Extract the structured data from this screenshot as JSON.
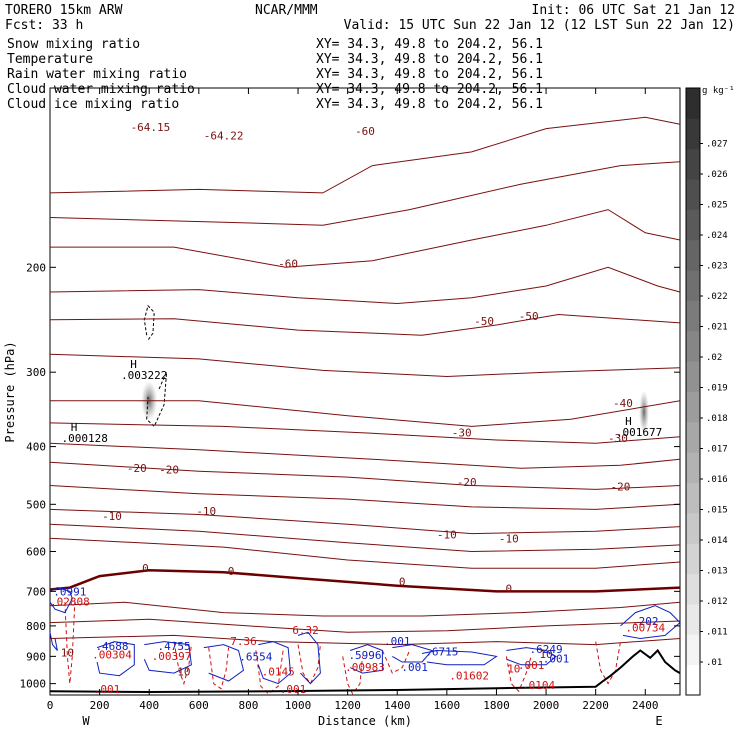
{
  "header": {
    "model": "TORERO  15km ARW",
    "org": "NCAR/MMM",
    "init": "Init: 06 UTC Sat 21 Jan 12",
    "fcst": "Fcst:   33 h",
    "valid": "Valid: 15 UTC Sun 22 Jan 12 (12 LST Sun 22 Jan 12)"
  },
  "legend": [
    {
      "label": "Snow mixing ratio",
      "xy": "XY=  34.3, 49.8 to 204.2, 56.1",
      "color": "#000000"
    },
    {
      "label": "Temperature",
      "xy": "XY=  34.3, 49.8 to 204.2, 56.1",
      "color": "#cc0000"
    },
    {
      "label": "Rain water mixing ratio",
      "xy": "XY=  34.3, 49.8 to 204.2, 56.1",
      "color": "#cc0000"
    },
    {
      "label": "Cloud water mixing ratio",
      "xy": "XY=  34.3, 49.8 to 204.2, 56.1",
      "color": "#0000cc"
    },
    {
      "label": "Cloud ice mixing ratio",
      "xy": "XY=  34.3, 49.8 to 204.2, 56.1",
      "color": "#000000"
    }
  ],
  "colors": {
    "temperature": "#7a1010",
    "zero_isotherm": "#6b0000",
    "rain": "#d01010",
    "cloud_water": "#1020c0",
    "terrain": "#000000",
    "cloud_ice": "#000000"
  },
  "chart_data": {
    "type": "contour",
    "xlabel": "Distance (km)",
    "ylabel": "Pressure (hPa)",
    "x_end_labels": {
      "left": "W",
      "right": "E"
    },
    "xlim": [
      0,
      2540
    ],
    "ylim_pressure": [
      1045,
      100
    ],
    "x_ticks": [
      0,
      200,
      400,
      600,
      800,
      1000,
      1200,
      1400,
      1600,
      1800,
      2000,
      2200,
      2400
    ],
    "y_ticks": [
      200,
      300,
      400,
      500,
      600,
      700,
      800,
      900,
      1000
    ],
    "colorbar": {
      "unit": "g kg⁻¹",
      "ticks": [
        ".01",
        ".011",
        ".012",
        ".013",
        ".014",
        ".015",
        ".016",
        ".017",
        ".018",
        ".019",
        ".02",
        ".021",
        ".022",
        ".023",
        ".024",
        ".025",
        ".026",
        ".027"
      ]
    },
    "temperature_isotherms": [
      {
        "value": -60,
        "labels": [
          {
            "text": "-60",
            "x": 1270,
            "p": 120
          },
          {
            "text": "-60",
            "x": 960,
            "p": 200
          }
        ]
      },
      {
        "value": -50,
        "labels": [
          {
            "text": "-50",
            "x": 1750,
            "p": 250
          },
          {
            "text": "-50",
            "x": 1930,
            "p": 245
          }
        ]
      },
      {
        "value": -40,
        "labels": [
          {
            "text": "-40",
            "x": 2310,
            "p": 343
          }
        ]
      },
      {
        "value": -30,
        "labels": [
          {
            "text": "-30",
            "x": 1660,
            "p": 385
          },
          {
            "text": "-30",
            "x": 2290,
            "p": 393
          }
        ]
      },
      {
        "value": -20,
        "labels": [
          {
            "text": "-20",
            "x": 350,
            "p": 441
          },
          {
            "text": "-20",
            "x": 480,
            "p": 444
          },
          {
            "text": "-20",
            "x": 1680,
            "p": 466
          },
          {
            "text": "-20",
            "x": 2300,
            "p": 474
          }
        ]
      },
      {
        "value": -10,
        "labels": [
          {
            "text": "-10",
            "x": 250,
            "p": 531
          },
          {
            "text": "-10",
            "x": 630,
            "p": 521
          },
          {
            "text": "-10",
            "x": 1600,
            "p": 571
          },
          {
            "text": "-10",
            "x": 1850,
            "p": 580
          }
        ]
      },
      {
        "value": 0,
        "labels": [
          {
            "text": "0",
            "x": 385,
            "p": 650
          },
          {
            "text": "0",
            "x": 730,
            "p": 657
          },
          {
            "text": "0",
            "x": 1420,
            "p": 684
          },
          {
            "text": "0",
            "x": 1850,
            "p": 703
          }
        ]
      },
      {
        "value": 10,
        "labels": [
          {
            "text": "10",
            "x": 70,
            "p": 900
          },
          {
            "text": "10",
            "x": 540,
            "p": 970
          },
          {
            "text": "10",
            "x": 2000,
            "p": 905
          }
        ]
      }
    ],
    "upper_labels": [
      {
        "text": "-64.15",
        "x": 405,
        "p": 118
      },
      {
        "text": "-64.22",
        "x": 700,
        "p": 122
      }
    ],
    "cloud_ice_maxima": [
      {
        "text": ".003222",
        "x": 380,
        "p": 308
      },
      {
        "text": ".000128",
        "x": 140,
        "p": 393
      },
      {
        "text": ".001677",
        "x": 2375,
        "p": 384
      }
    ],
    "cloud_water_maxima": [
      {
        "text": ".0991",
        "x": 80,
        "p": 712
      },
      {
        "text": ".4688",
        "x": 250,
        "p": 878
      },
      {
        "text": ".4755",
        "x": 500,
        "p": 878
      },
      {
        "text": ".6554",
        "x": 830,
        "p": 915
      },
      {
        "text": ".5996",
        "x": 1270,
        "p": 910
      },
      {
        "text": ".6715",
        "x": 1580,
        "p": 897
      },
      {
        "text": ".6249",
        "x": 2000,
        "p": 889
      },
      {
        "text": ".202",
        "x": 2400,
        "p": 798
      },
      {
        "text": ".001",
        "x": 1400,
        "p": 862
      },
      {
        "text": ".001",
        "x": 1470,
        "p": 952
      },
      {
        "text": ".001",
        "x": 2040,
        "p": 922
      }
    ],
    "rain_maxima": [
      {
        "text": ".02808",
        "x": 80,
        "p": 739
      },
      {
        "text": ".00304",
        "x": 250,
        "p": 908
      },
      {
        "text": ".00397",
        "x": 490,
        "p": 912
      },
      {
        "text": "7.36",
        "x": 780,
        "p": 862
      },
      {
        "text": "6.32",
        "x": 1030,
        "p": 825
      },
      {
        "text": ".0145",
        "x": 920,
        "p": 969
      },
      {
        "text": ".00983",
        "x": 1270,
        "p": 952
      },
      {
        "text": ".01602",
        "x": 1690,
        "p": 985
      },
      {
        "text": ".00734",
        "x": 2400,
        "p": 817
      },
      {
        "text": ".0104",
        "x": 1970,
        "p": 1022
      },
      {
        "text": ".001",
        "x": 1940,
        "p": 945
      },
      {
        "text": ".001",
        "x": 230,
        "p": 1037
      },
      {
        "text": ".001",
        "x": 980,
        "p": 1037
      },
      {
        "text": "10",
        "x": 1870,
        "p": 958
      }
    ]
  }
}
